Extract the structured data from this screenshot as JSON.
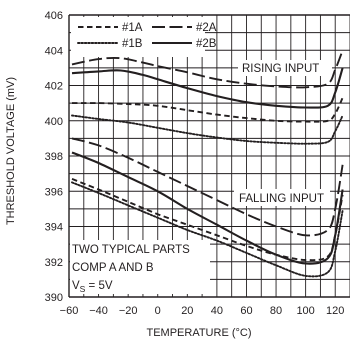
{
  "chart_data": {
    "type": "line",
    "xlabel": "TEMPERATURE (°C)",
    "ylabel": "THRESHOLD VOLTAGE (mV)",
    "xlim": [
      -60,
      130
    ],
    "ylim": [
      390,
      406
    ],
    "x_ticks": [
      -60,
      -40,
      -20,
      0,
      20,
      40,
      60,
      80,
      100,
      120
    ],
    "y_ticks": [
      390,
      392,
      394,
      396,
      398,
      400,
      402,
      404,
      406
    ],
    "x_tick_labels": [
      "−60",
      "−40",
      "−20",
      "0",
      "20",
      "40",
      "60",
      "80",
      "100",
      "120"
    ],
    "y_tick_labels": [
      "390",
      "392",
      "394",
      "396",
      "398",
      "400",
      "402",
      "404",
      "406"
    ],
    "grid": true,
    "legend_position": "top-left",
    "legend": [
      {
        "label": "#1A",
        "style": "dashed"
      },
      {
        "label": "#2A",
        "style": "longdash"
      },
      {
        "label": "#1B",
        "style": "dotted"
      },
      {
        "label": "#2B",
        "style": "solid"
      }
    ],
    "annotations": {
      "rising": "RISING INPUT",
      "falling": "FALLING INPUT",
      "parts_line1": "TWO TYPICAL PARTS",
      "parts_line2": "COMP A AND B",
      "vs_label": "V",
      "vs_sub": "S",
      "vs_value": " = 5V"
    },
    "series": [
      {
        "name": "#1A",
        "group": "rising",
        "style": "dashed",
        "x": [
          -58,
          -40,
          -20,
          0,
          20,
          40,
          60,
          80,
          100,
          115,
          120,
          125
        ],
        "y": [
          401.0,
          401.0,
          400.95,
          400.85,
          400.6,
          400.35,
          400.15,
          400.0,
          399.95,
          400.0,
          400.4,
          401.3
        ]
      },
      {
        "name": "#2A",
        "group": "rising",
        "style": "longdash",
        "x": [
          -58,
          -40,
          -25,
          -10,
          0,
          20,
          40,
          60,
          80,
          100,
          115,
          120,
          125
        ],
        "y": [
          403.2,
          403.5,
          403.55,
          403.3,
          403.1,
          402.75,
          402.35,
          402.1,
          401.95,
          401.9,
          402.1,
          402.9,
          404.0
        ]
      },
      {
        "name": "#1B",
        "group": "rising",
        "style": "dotted",
        "x": [
          -58,
          -40,
          -20,
          0,
          20,
          40,
          60,
          80,
          100,
          115,
          120,
          125
        ],
        "y": [
          400.3,
          400.1,
          399.9,
          399.6,
          399.3,
          399.05,
          398.85,
          398.75,
          398.7,
          398.8,
          399.4,
          400.3
        ]
      },
      {
        "name": "#2B",
        "group": "rising",
        "style": "solid",
        "x": [
          -58,
          -40,
          -25,
          -10,
          0,
          20,
          40,
          60,
          80,
          100,
          115,
          120,
          125
        ],
        "y": [
          402.7,
          402.8,
          402.85,
          402.6,
          402.35,
          401.85,
          401.4,
          401.05,
          400.85,
          400.75,
          400.85,
          401.6,
          403.0
        ]
      },
      {
        "name": "#1A",
        "group": "falling",
        "style": "dashed",
        "x": [
          -58,
          -40,
          -20,
          0,
          20,
          40,
          60,
          80,
          100,
          115,
          120,
          125
        ],
        "y": [
          396.7,
          396.1,
          395.4,
          394.7,
          394.1,
          393.5,
          392.9,
          392.4,
          392.1,
          392.3,
          393.5,
          395.8
        ]
      },
      {
        "name": "#2A",
        "group": "falling",
        "style": "longdash",
        "x": [
          -58,
          -40,
          -20,
          0,
          20,
          40,
          60,
          80,
          100,
          115,
          120,
          125
        ],
        "y": [
          399.0,
          398.6,
          397.9,
          397.1,
          396.3,
          395.5,
          394.7,
          394.0,
          393.5,
          393.8,
          395.0,
          397.5
        ]
      },
      {
        "name": "#1B",
        "group": "falling",
        "style": "dotted",
        "x": [
          -58,
          -40,
          -20,
          0,
          20,
          40,
          60,
          80,
          100,
          115,
          120,
          125
        ],
        "y": [
          396.5,
          395.9,
          395.2,
          394.5,
          393.8,
          393.2,
          392.5,
          391.8,
          391.2,
          391.4,
          392.6,
          394.9
        ]
      },
      {
        "name": "#2B",
        "group": "falling",
        "style": "solid",
        "x": [
          -58,
          -40,
          -20,
          0,
          20,
          40,
          60,
          80,
          100,
          115,
          120,
          125
        ],
        "y": [
          398.2,
          397.6,
          396.8,
          396.0,
          395.0,
          394.1,
          393.2,
          392.4,
          391.9,
          392.2,
          393.5,
          396.1
        ]
      }
    ]
  }
}
